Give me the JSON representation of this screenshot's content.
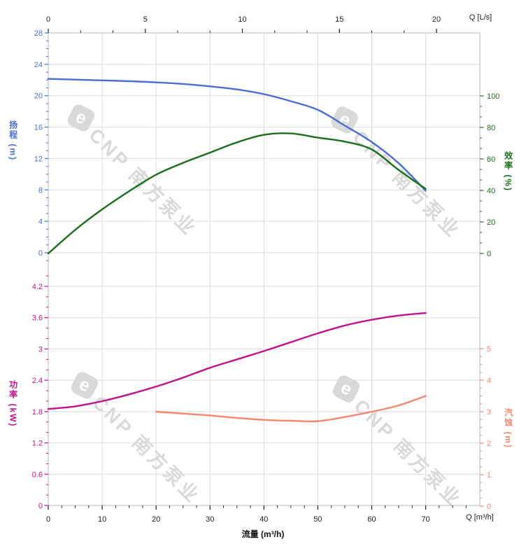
{
  "colors": {
    "head": "#4a6fd2",
    "efficiency": "#1b6e1b",
    "power": "#c21290",
    "npsh": "#f6876e",
    "grid": "#dcdcdc",
    "border": "#b9b9b9",
    "axis_text": "#222222",
    "watermark": "#d9d9d9"
  },
  "watermark": {
    "logo_char": "e",
    "text": "CNP 南方泵业"
  },
  "chart_data": {
    "type": "line",
    "title": "",
    "x_axis_bottom": {
      "label": "流量 (m³/h)",
      "corner_label": "Q [m³/h]",
      "unit": "m³/h",
      "min": 0,
      "max": 80,
      "major_ticks": [
        0,
        10,
        20,
        30,
        40,
        50,
        60,
        70
      ],
      "minor_step": 2.5,
      "minor_count": 31
    },
    "x_axis_top": {
      "corner_label": "Q [L/s]",
      "unit": "L/s",
      "min": 0,
      "max": 22.2,
      "major_ticks": [
        0,
        5,
        10,
        15,
        20
      ],
      "minor_step": 1.6667,
      "minor_count": 11
    },
    "y_axes": {
      "head": {
        "title": "扬程 (m)",
        "side": "left",
        "min": 0,
        "max": 28,
        "major_ticks": [
          0,
          4,
          8,
          12,
          16,
          20,
          24,
          28
        ],
        "minor_step": 1,
        "extra_below": 1
      },
      "efficiency": {
        "title": "效率 (%)",
        "side": "right",
        "min": 0,
        "max": 100,
        "major_ticks": [
          0,
          20,
          40,
          60,
          80,
          100
        ],
        "minor_step": 6.6667
      },
      "power": {
        "title": "功率 (kW)",
        "side": "left",
        "min": 0,
        "max": 4.2,
        "major_ticks": [
          0,
          0.6,
          1.2,
          1.8,
          2.4,
          3,
          3.6,
          4.2
        ],
        "minor_step": 0.2,
        "extra_above": 1
      },
      "npsh": {
        "title": "汽蚀 (m)",
        "side": "right",
        "min": 0,
        "max": 5,
        "major_ticks": [
          0,
          1,
          2,
          3,
          4,
          5
        ],
        "minor_step": 0.25
      }
    },
    "series": [
      {
        "name": "扬程",
        "axis": "head",
        "x": [
          0,
          5,
          10,
          15,
          20,
          25,
          30,
          35,
          40,
          45,
          50,
          55,
          60,
          65,
          70
        ],
        "values": [
          22.15,
          22.05,
          21.95,
          21.85,
          21.7,
          21.5,
          21.2,
          20.8,
          20.2,
          19.3,
          18.2,
          16.2,
          14.1,
          11.4,
          7.9
        ]
      },
      {
        "name": "效率",
        "axis": "efficiency",
        "x": [
          0,
          5,
          10,
          15,
          20,
          25,
          30,
          35,
          40,
          45,
          50,
          55,
          60,
          65,
          70
        ],
        "values": [
          0,
          15,
          28,
          39.5,
          50,
          57.5,
          64,
          70.5,
          75.3,
          76.2,
          73.5,
          71,
          66,
          53,
          41
        ]
      },
      {
        "name": "功率",
        "axis": "power",
        "x": [
          0,
          5,
          10,
          15,
          20,
          25,
          30,
          35,
          40,
          45,
          50,
          55,
          60,
          65,
          70
        ],
        "values": [
          1.85,
          1.9,
          2.0,
          2.13,
          2.28,
          2.45,
          2.64,
          2.8,
          2.96,
          3.13,
          3.3,
          3.45,
          3.56,
          3.64,
          3.69
        ]
      },
      {
        "name": "汽蚀",
        "axis": "npsh",
        "x": [
          20,
          25,
          30,
          35,
          40,
          45,
          50,
          55,
          60,
          65,
          70
        ],
        "values": [
          3.0,
          2.94,
          2.88,
          2.8,
          2.74,
          2.71,
          2.7,
          2.83,
          3.0,
          3.2,
          3.5
        ]
      }
    ]
  }
}
